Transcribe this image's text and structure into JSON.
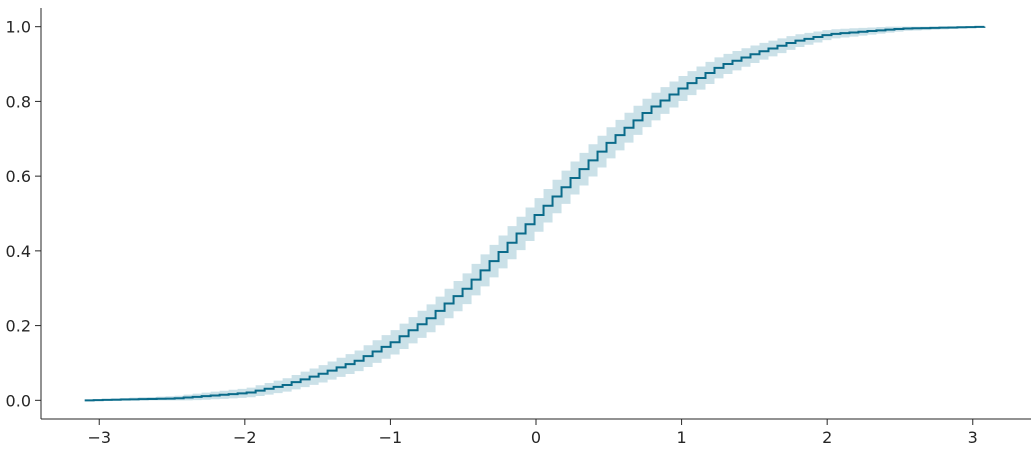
{
  "chart_data": {
    "type": "line",
    "title": "",
    "xlabel": "",
    "ylabel": "",
    "xlim": [
      -3.4,
      3.4
    ],
    "ylim": [
      -0.05,
      1.05
    ],
    "xticks": [
      -3,
      -2,
      -1,
      0,
      1,
      2,
      3
    ],
    "xtick_labels": [
      "−3",
      "−2",
      "−1",
      "0",
      "1",
      "2",
      "3"
    ],
    "yticks": [
      0.0,
      0.2,
      0.4,
      0.6,
      0.8,
      1.0
    ],
    "ytick_labels": [
      "0.0",
      "0.2",
      "0.4",
      "0.6",
      "0.8",
      "1.0"
    ],
    "grid": false,
    "x_range": [
      -3.1,
      3.08
    ],
    "step_count": 100,
    "ci_halfwidth_max": 0.045,
    "line_color": "#0a6b8a",
    "band_color": "#a9cdd8",
    "series": [
      {
        "x": [
          -3.1,
          -2.5,
          -2.0,
          -1.75,
          -1.5,
          -1.25,
          -1.0,
          -0.75,
          -0.5,
          -0.25,
          0.0,
          0.25,
          0.5,
          0.75,
          1.0,
          1.25,
          1.5,
          1.75,
          2.0,
          2.5,
          3.08
        ],
        "y": [
          0.0,
          0.005,
          0.02,
          0.04,
          0.07,
          0.105,
          0.155,
          0.22,
          0.3,
          0.4,
          0.5,
          0.6,
          0.695,
          0.775,
          0.84,
          0.895,
          0.93,
          0.96,
          0.98,
          0.995,
          1.0
        ]
      }
    ]
  }
}
